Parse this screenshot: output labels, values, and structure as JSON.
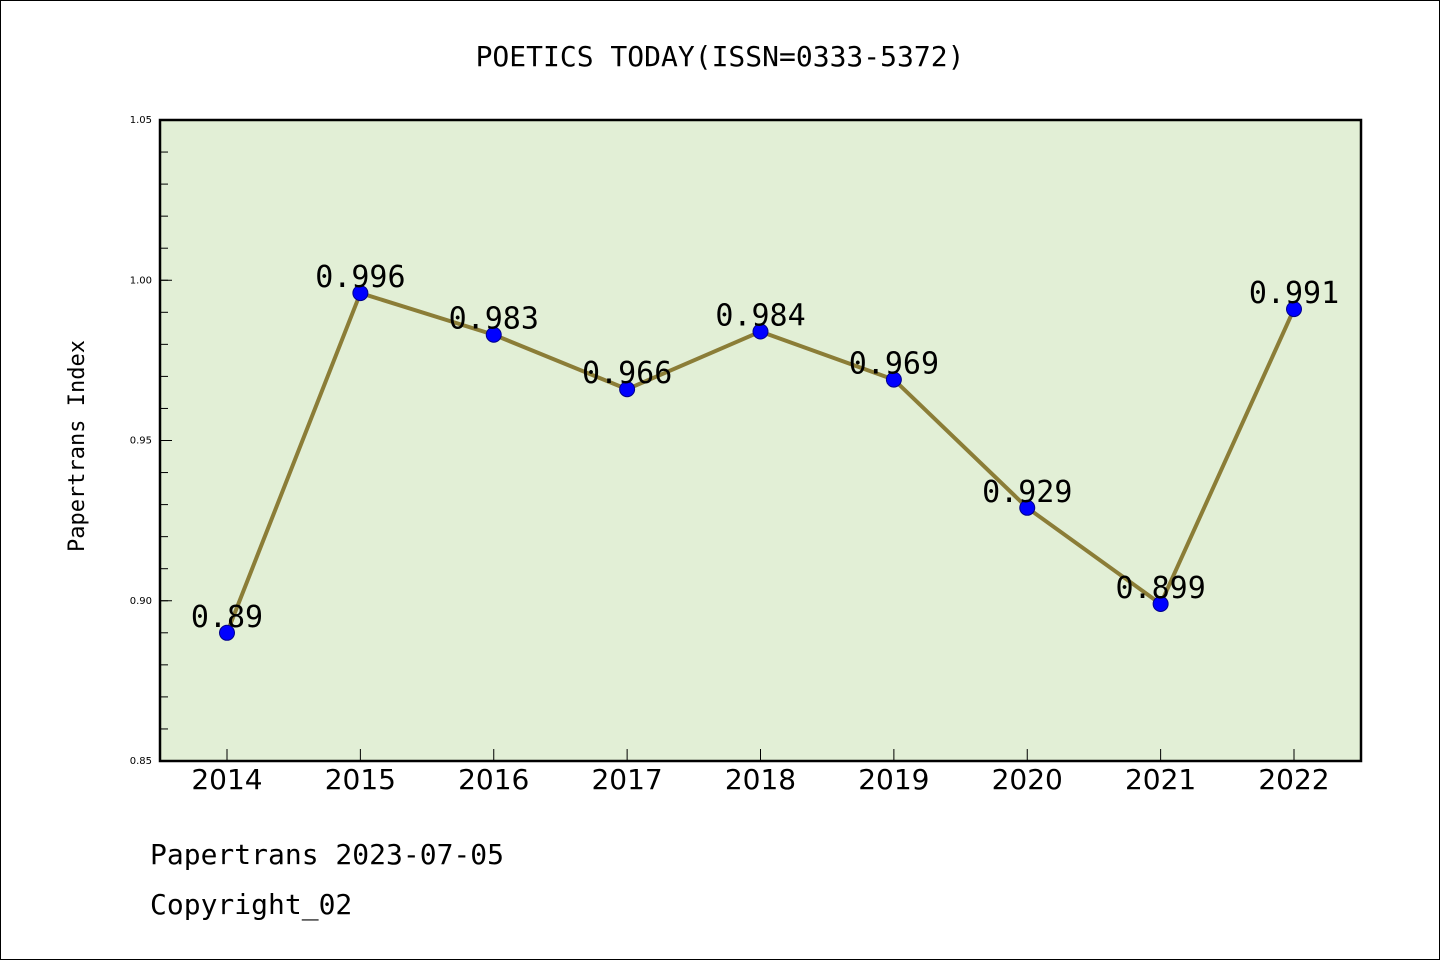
{
  "chart_data": {
    "type": "line",
    "title": "POETICS TODAY(ISSN=0333-5372)",
    "ylabel": "Papertrans Index",
    "xlabel": "",
    "categories": [
      "2014",
      "2015",
      "2016",
      "2017",
      "2018",
      "2019",
      "2020",
      "2021",
      "2022"
    ],
    "series": [
      {
        "values": [
          0.89,
          0.996,
          0.983,
          0.966,
          0.984,
          0.969,
          0.929,
          0.899,
          0.991
        ],
        "labels": [
          "0.89",
          "0.996",
          "0.983",
          "0.966",
          "0.984",
          "0.969",
          "0.929",
          "0.899",
          "0.991"
        ]
      }
    ],
    "ylim": [
      0.85,
      1.05
    ],
    "yticks": [
      0.85,
      0.9,
      0.95,
      1.0,
      1.05
    ],
    "ytick_labels": [
      "0.85",
      "0.90",
      "0.95",
      "1.00",
      "1.05"
    ],
    "grid": false,
    "legend": "none",
    "colors": {
      "plot_background": "#e2efd6",
      "line": "#8b7d37",
      "marker": "#0000ff"
    }
  },
  "footer": {
    "line1": "Papertrans 2023-07-05",
    "line2": "Copyright_02"
  }
}
